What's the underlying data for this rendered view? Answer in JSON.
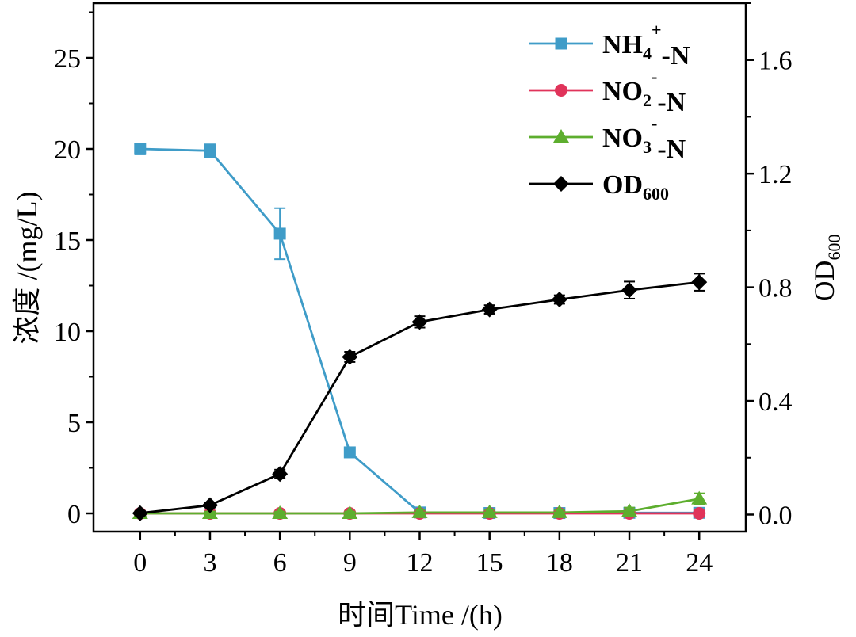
{
  "chart_data": {
    "type": "line",
    "xlabel": "时间Time /(h)",
    "ylabel_left": "浓度 /(mg/L)",
    "ylabel_right": {
      "base": "OD",
      "sub": "600"
    },
    "x": [
      0,
      3,
      6,
      9,
      12,
      15,
      18,
      21,
      24
    ],
    "x_ticks": [
      "0",
      "3",
      "6",
      "9",
      "12",
      "15",
      "18",
      "21",
      "24"
    ],
    "xlim": [
      -2,
      26
    ],
    "ylim_left": [
      -1,
      28
    ],
    "ylim_right": [
      -0.06,
      1.8
    ],
    "yticks_left": [
      "0",
      "5",
      "10",
      "15",
      "20",
      "25"
    ],
    "yticks_right": [
      "0.0",
      "0.4",
      "0.8",
      "1.2",
      "1.6"
    ],
    "grid": false,
    "legend_position": "top-right",
    "series": [
      {
        "name": {
          "base": "NH",
          "sub": "4",
          "sup": "+",
          "tail": "-N"
        },
        "axis": "left",
        "color": "#3F9CC8",
        "marker": "square",
        "values": [
          20.0,
          19.9,
          15.35,
          3.35,
          0.05,
          0.02,
          0.02,
          0.03,
          0.03
        ],
        "errors": [
          0.3,
          0.35,
          1.4,
          0.25,
          0.1,
          0.05,
          0.05,
          0.05,
          0.05
        ]
      },
      {
        "name": {
          "base": "NO",
          "sub": "2",
          "sup": "-",
          "tail": "-N"
        },
        "axis": "left",
        "color": "#E0335A",
        "marker": "circle",
        "values": [
          0.0,
          0.0,
          0.0,
          0.0,
          0.0,
          0.0,
          0.0,
          0.0,
          0.0
        ],
        "errors": [
          0.05,
          0.05,
          0.05,
          0.05,
          0.05,
          0.05,
          0.05,
          0.05,
          0.05
        ]
      },
      {
        "name": {
          "base": "NO",
          "sub": "3",
          "sup": "-",
          "tail": "-N"
        },
        "axis": "left",
        "color": "#5DAE2E",
        "marker": "triangle",
        "values": [
          0.0,
          0.0,
          0.0,
          0.0,
          0.05,
          0.05,
          0.05,
          0.12,
          0.8
        ],
        "errors": [
          0.1,
          0.1,
          0.1,
          0.1,
          0.15,
          0.15,
          0.15,
          0.2,
          0.3
        ]
      },
      {
        "name": {
          "base": "OD",
          "sub": "600",
          "sup": "",
          "tail": ""
        },
        "axis": "right",
        "color": "#000000",
        "marker": "diamond",
        "values": [
          0.005,
          0.033,
          0.143,
          0.555,
          0.678,
          0.722,
          0.757,
          0.79,
          0.818
        ],
        "errors": [
          0.008,
          0.008,
          0.015,
          0.018,
          0.02,
          0.015,
          0.015,
          0.03,
          0.03
        ]
      }
    ]
  }
}
